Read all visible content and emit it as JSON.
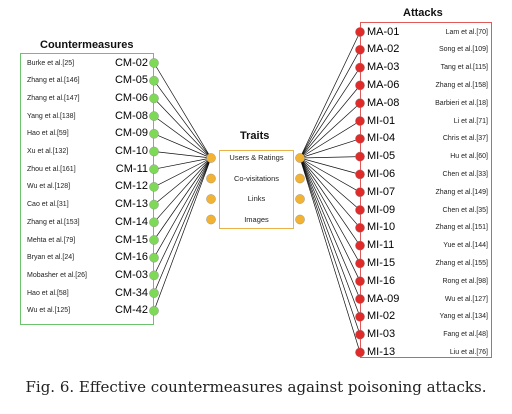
{
  "titles": {
    "countermeasures": "Countermeasures",
    "traits": "Traits",
    "attacks": "Attacks"
  },
  "countermeasures": [
    {
      "ref": "Burke et al.[25]",
      "code": "CM-02"
    },
    {
      "ref": "Zhang et al.[146]",
      "code": "CM-05"
    },
    {
      "ref": "Zhang et al.[147]",
      "code": "CM-06"
    },
    {
      "ref": "Yang et al.[138]",
      "code": "CM-08"
    },
    {
      "ref": "Hao et al.[59]",
      "code": "CM-09"
    },
    {
      "ref": "Xu et al.[132]",
      "code": "CM-10"
    },
    {
      "ref": "Zhou et al.[161]",
      "code": "CM-11"
    },
    {
      "ref": "Wu et al.[128]",
      "code": "CM-12"
    },
    {
      "ref": "Cao et al.[31]",
      "code": "CM-13"
    },
    {
      "ref": "Zhang et al.[153]",
      "code": "CM-14"
    },
    {
      "ref": "Mehta et al.[79]",
      "code": "CM-15"
    },
    {
      "ref": "Bryan et al.[24]",
      "code": "CM-16"
    },
    {
      "ref": "Mobasher et al.[26]",
      "code": "CM-03"
    },
    {
      "ref": "Hao et al.[58]",
      "code": "CM-34"
    },
    {
      "ref": "Wu et al.[125]",
      "code": "CM-42"
    }
  ],
  "traits": [
    "Users & Ratings",
    "Co-visitations",
    "Links",
    "Images"
  ],
  "attacks": [
    {
      "code": "MA-01",
      "ref": "Lam et al.[70]"
    },
    {
      "code": "MA-02",
      "ref": "Song et al.[109]"
    },
    {
      "code": "MA-03",
      "ref": "Tang et al.[115]"
    },
    {
      "code": "MA-06",
      "ref": "Zhang et al.[158]"
    },
    {
      "code": "MA-08",
      "ref": "Barbieri et al.[18]"
    },
    {
      "code": "MI-01",
      "ref": "Li et al.[71]"
    },
    {
      "code": "MI-04",
      "ref": "Chris et al.[37]"
    },
    {
      "code": "MI-05",
      "ref": "Hu et al.[60]"
    },
    {
      "code": "MI-06",
      "ref": "Chen et al.[33]"
    },
    {
      "code": "MI-07",
      "ref": "Zhang et al.[149]"
    },
    {
      "code": "MI-09",
      "ref": "Chen et al.[35]"
    },
    {
      "code": "MI-10",
      "ref": "Zhang et al.[151]"
    },
    {
      "code": "MI-11",
      "ref": "Yue et al.[144]"
    },
    {
      "code": "MI-15",
      "ref": "Zhang et al.[155]"
    },
    {
      "code": "MI-16",
      "ref": "Rong et al.[98]"
    },
    {
      "code": "MA-09",
      "ref": "Wu et al.[127]"
    },
    {
      "code": "MI-02",
      "ref": "Yang et al.[134]"
    },
    {
      "code": "MI-03",
      "ref": "Fang et al.[48]"
    },
    {
      "code": "MI-13",
      "ref": "Liu et al.[76]"
    }
  ],
  "colors": {
    "countermeasure_node": "#7ed957",
    "trait_node": "#f2b233",
    "attack_node": "#e02b2b",
    "countermeasure_border": "#6cc36c",
    "attack_border": "#e05a5a",
    "trait_border": "#e8b24a"
  },
  "caption": "Fig. 6.  Effective countermeasures against poisoning attacks."
}
